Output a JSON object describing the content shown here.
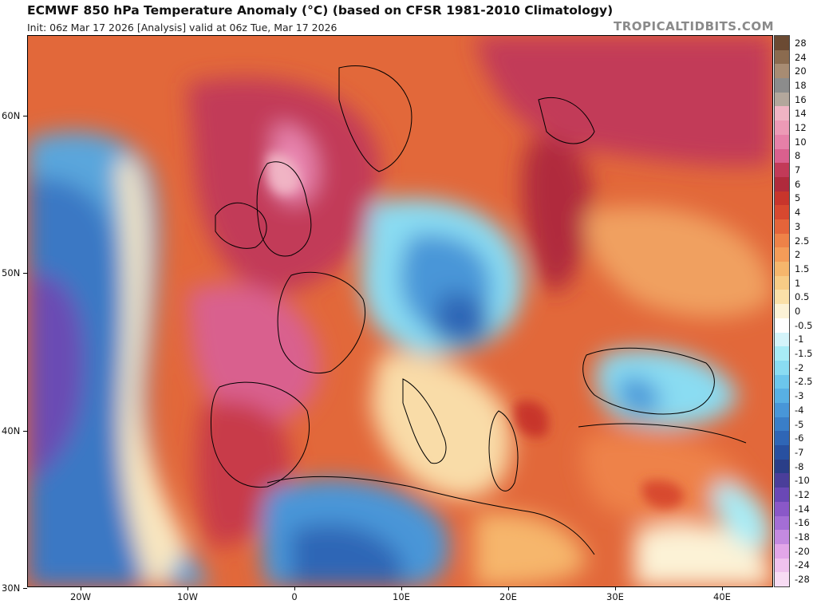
{
  "header": {
    "title": "ECMWF 850 hPa Temperature Anomaly (°C) (based on CFSR 1981-2010 Climatology)",
    "subtitle": "Init: 06z Mar 17 2026   [Analysis]   valid at 06z Tue, Mar 17 2026",
    "brand": "TROPICALTIDBITS.COM"
  },
  "map": {
    "lat_labels": [
      "60N",
      "50N",
      "40N",
      "30N"
    ],
    "lon_labels": [
      "20W",
      "10W",
      "0",
      "10E",
      "20E",
      "30E",
      "40E"
    ],
    "units": "°C"
  },
  "colorbar": {
    "labels": [
      "28",
      "24",
      "20",
      "18",
      "16",
      "14",
      "12",
      "10",
      "8",
      "7",
      "6",
      "5",
      "4",
      "3",
      "2.5",
      "2",
      "1.5",
      "1",
      "0.5",
      "0",
      "-0.5",
      "-1",
      "-1.5",
      "-2",
      "-2.5",
      "-3",
      "-4",
      "-5",
      "-6",
      "-7",
      "-8",
      "-10",
      "-12",
      "-14",
      "-16",
      "-18",
      "-20",
      "-24",
      "-28"
    ],
    "colors": [
      "#6b4a33",
      "#8b6b4f",
      "#a88c73",
      "#8c8c8c",
      "#b3a79c",
      "#f0b4c4",
      "#ec9ab6",
      "#e680a8",
      "#d9608e",
      "#c23a58",
      "#b02a3c",
      "#c8352c",
      "#d8482f",
      "#e4643a",
      "#ee8248",
      "#f49c58",
      "#f6b66c",
      "#f8cc86",
      "#fae0a8",
      "#fcf2d6",
      "#ffffff",
      "#d4f4fa",
      "#a8ecf6",
      "#8adcf2",
      "#6cc6ec",
      "#58b0e4",
      "#4896d8",
      "#3a7ec8",
      "#2f66b6",
      "#2850a0",
      "#2a3e88",
      "#4a3e9a",
      "#6a48b6",
      "#8a58c8",
      "#a46ed6",
      "#c48ae0",
      "#e2a6e8",
      "#f0c2ee",
      "#f8dcf4"
    ]
  }
}
